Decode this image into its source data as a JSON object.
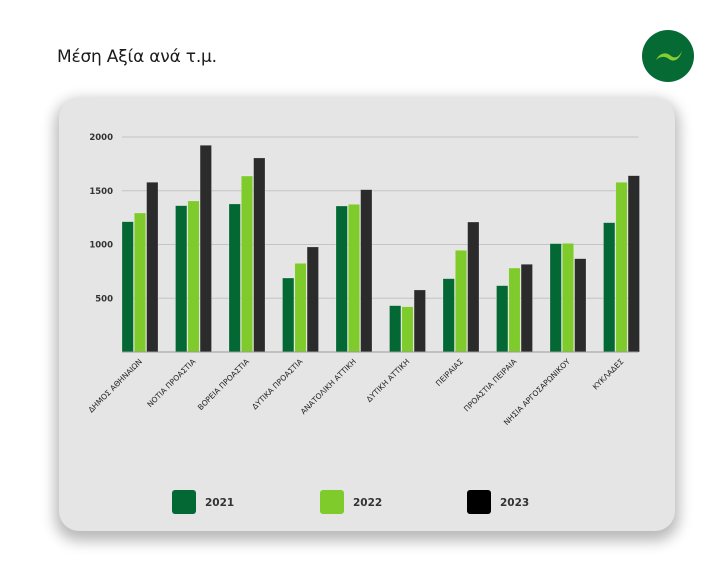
{
  "header": {
    "title": "Μέση Αξία ανά τ.μ.",
    "logo_icon": "green-circle-wave-logo"
  },
  "colors": {
    "series_2021": "#036834",
    "series_2022": "#7fcb2c",
    "series_2023": "#2b2b2b",
    "legend_2023": "#000000",
    "card_bg": "#e5e5e5",
    "logo_bg": "#066a35",
    "logo_wave": "#86cd2f"
  },
  "chart_data": {
    "type": "bar",
    "title": "Μέση Αξία ανά τ.μ.",
    "xlabel": "",
    "ylabel": "",
    "ylim": [
      0,
      2000
    ],
    "yticks": [
      500,
      1000,
      1500,
      2000
    ],
    "ytick_labels": [
      "500",
      "1000",
      "1500",
      "2000"
    ],
    "grid": true,
    "legend_position": "bottom",
    "categories": [
      "ΔΗΜΟΣ ΑΘΗΝΑΙΩΝ",
      "ΝΟΤΙΑ ΠΡΟΑΣΤΙΑ",
      "ΒΟΡΕΙΑ ΠΡΟΑΣΤΙΑ",
      "ΔΥΤΙΚΑ ΠΡΟΑΣΤΙΑ",
      "ΑΝΑΤΟΛΙΚΗ ΑΤΤΙΚΗ",
      "ΔΥΤΙΚΗ ΑΤΤΙΚΗ",
      "ΠΕΙΡΑΙΑΣ",
      "ΠΡΟΑΣΤΙΑ ΠΕΙΡΑΙΑ",
      "ΝΗΣΙΑ ΑΡΓΟΣΑΡΩΝΙΚΟΥ",
      "ΚΥΚΛΑΔΕΣ"
    ],
    "series": [
      {
        "name": "2021",
        "values": [
          1212,
          1361,
          1377,
          688,
          1358,
          431,
          682,
          617,
          1008,
          1203
        ]
      },
      {
        "name": "2022",
        "values": [
          1293,
          1405,
          1637,
          825,
          1374,
          421,
          946,
          781,
          1011,
          1579
        ]
      },
      {
        "name": "2023",
        "values": [
          1579,
          1923,
          1805,
          977,
          1510,
          577,
          1209,
          816,
          868,
          1640
        ]
      }
    ]
  }
}
